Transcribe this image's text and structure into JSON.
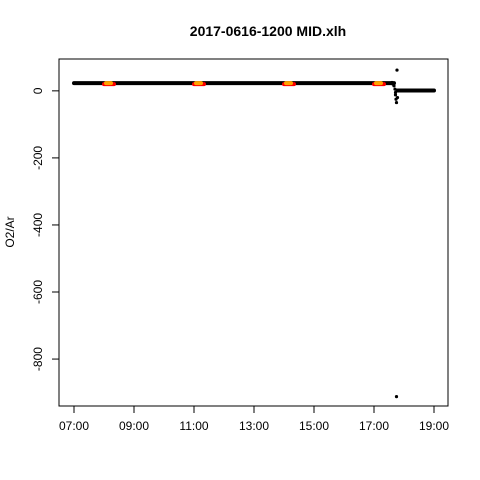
{
  "chart_data": {
    "type": "scatter",
    "title": "2017-0616-1200 MID.xlh",
    "xlabel": "",
    "ylabel": "O2/Ar",
    "x_unit": "time of day (HH:MM)",
    "xlim": [
      "07:00",
      "19:00"
    ],
    "ylim": [
      -940,
      95
    ],
    "x_ticks": [
      "07:00",
      "09:00",
      "11:00",
      "13:00",
      "15:00",
      "17:00",
      "19:00"
    ],
    "y_ticks": [
      0,
      -200,
      -400,
      -600,
      -800
    ],
    "grid": false,
    "legend": "none",
    "series": [
      {
        "color": "#000000",
        "marker": "filled-circle",
        "segments": [
          {
            "from": "07:00",
            "to": "17:40",
            "value": 23
          },
          {
            "from": "17:47",
            "to": "19:00",
            "value": 1
          }
        ],
        "points": [
          {
            "x": "17:36",
            "y": 25
          },
          {
            "x": "17:38",
            "y": 20
          },
          {
            "x": "17:40",
            "y": 15
          },
          {
            "x": "17:42",
            "y": 5
          },
          {
            "x": "17:43",
            "y": -5
          },
          {
            "x": "17:43",
            "y": -12
          },
          {
            "x": "17:44",
            "y": -25
          },
          {
            "x": "17:45",
            "y": -35
          },
          {
            "x": "17:46",
            "y": 62
          },
          {
            "x": "17:47",
            "y": -20
          },
          {
            "x": "17:45",
            "y": -912
          }
        ]
      },
      {
        "color": "#ff0000",
        "marker": "filled-circle",
        "segments": [
          {
            "from": "08:00",
            "to": "08:20",
            "value": 20
          },
          {
            "from": "11:00",
            "to": "11:20",
            "value": 20
          },
          {
            "from": "14:00",
            "to": "14:20",
            "value": 20
          },
          {
            "from": "17:00",
            "to": "17:20",
            "value": 20
          }
        ]
      },
      {
        "color": "#ffa500",
        "marker": "filled-circle",
        "segments": [
          {
            "from": "08:04",
            "to": "08:14",
            "value": 23
          },
          {
            "from": "11:04",
            "to": "11:14",
            "value": 23
          },
          {
            "from": "14:04",
            "to": "14:14",
            "value": 23
          },
          {
            "from": "17:04",
            "to": "17:14",
            "value": 23
          }
        ]
      }
    ]
  }
}
